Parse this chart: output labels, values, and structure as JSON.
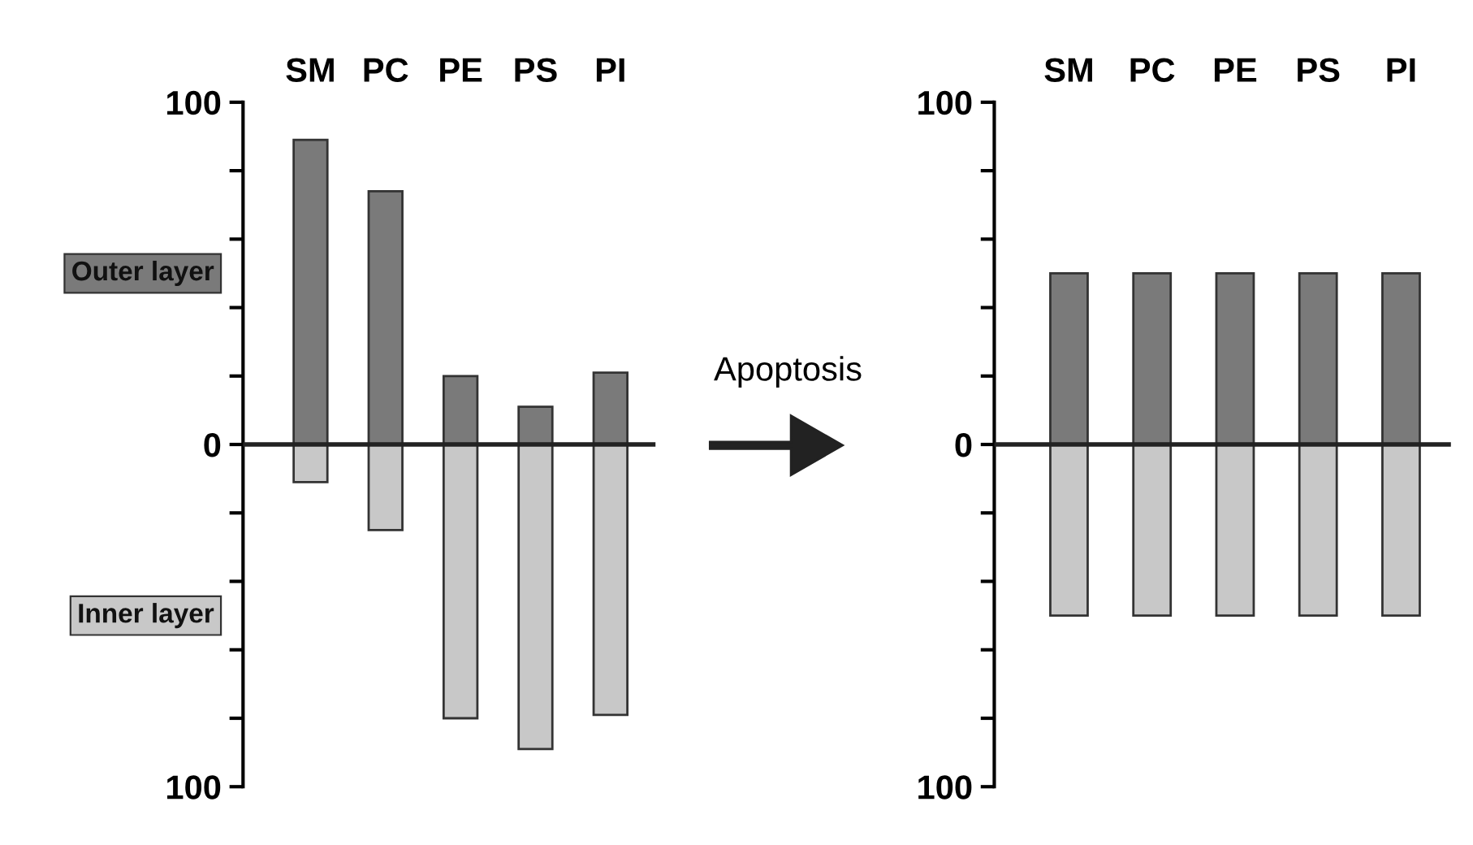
{
  "chart_data": [
    {
      "type": "bar",
      "stacked": true,
      "categories": [
        "SM",
        "PC",
        "PE",
        "PS",
        "PI"
      ],
      "series": [
        {
          "name": "Outer layer",
          "color": "#7a7a7a",
          "values": [
            89,
            74,
            20,
            11,
            21
          ]
        },
        {
          "name": "Inner layer",
          "color": "#c8c8c8",
          "values": [
            -11,
            -25,
            -80,
            -89,
            -79
          ]
        }
      ],
      "ylim": [
        -100,
        100
      ],
      "yticks": [
        {
          "value": 100,
          "label": "100"
        },
        {
          "value": 80,
          "label": null
        },
        {
          "value": 60,
          "label": null
        },
        {
          "value": 40,
          "label": null
        },
        {
          "value": 20,
          "label": null
        },
        0,
        {
          "value": -20,
          "label": null
        },
        {
          "value": -40,
          "label": null
        },
        {
          "value": -60,
          "label": null
        },
        {
          "value": -80,
          "label": null
        },
        {
          "value": -100,
          "label": "100"
        }
      ],
      "ref_lines": [
        {
          "axis": "y",
          "value": 0
        }
      ],
      "annotations": [
        "Apoptosis"
      ]
    },
    {
      "type": "bar",
      "stacked": true,
      "categories": [
        "SM",
        "PC",
        "PE",
        "PS",
        "PI"
      ],
      "series": [
        {
          "color": "#7a7a7a",
          "values": [
            50,
            50,
            50,
            50,
            50
          ]
        },
        {
          "color": "#c8c8c8",
          "values": [
            -50,
            -50,
            -50,
            -50,
            -50
          ]
        }
      ],
      "ylim": [
        -100,
        100
      ],
      "yticks": [
        {
          "value": 100,
          "label": "100"
        },
        {
          "value": 80,
          "label": null
        },
        {
          "value": 60,
          "label": null
        },
        {
          "value": 40,
          "label": null
        },
        {
          "value": 20,
          "label": null
        },
        0,
        {
          "value": -20,
          "label": null
        },
        {
          "value": -40,
          "label": null
        },
        {
          "value": -60,
          "label": null
        },
        {
          "value": -80,
          "label": null
        },
        {
          "value": -100,
          "label": "100"
        }
      ],
      "ref_lines": [
        {
          "axis": "y",
          "value": 0
        }
      ]
    }
  ]
}
